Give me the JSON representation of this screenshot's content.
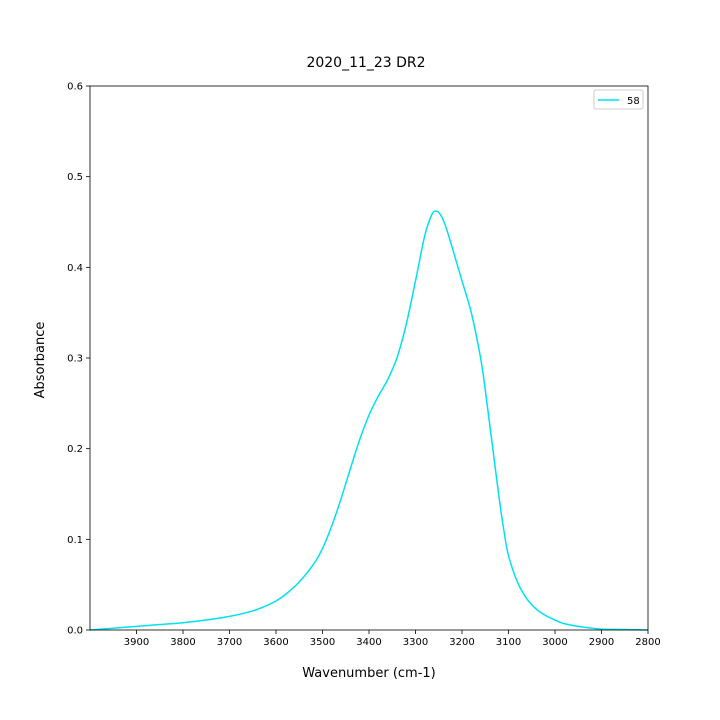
{
  "chart_data": {
    "type": "line",
    "title": "2020_11_23 DR2",
    "xlabel": "Wavenumber (cm-1)",
    "ylabel": "Absorbance",
    "xlim": [
      4000,
      2800
    ],
    "x_inverted": true,
    "ylim": [
      0,
      0.6
    ],
    "xticks": [
      3900,
      3800,
      3700,
      3600,
      3500,
      3400,
      3300,
      3200,
      3100,
      3000,
      2900,
      2800
    ],
    "xtick_labels": [
      "3900",
      "3800",
      "3700",
      "3600",
      "3500",
      "3400",
      "3300",
      "3200",
      "3100",
      "3000",
      "2900",
      "2800"
    ],
    "yticks": [
      0,
      0.1,
      0.2,
      0.3,
      0.4,
      0.5,
      0.6
    ],
    "ytick_labels": [
      "0.0",
      "0.1",
      "0.2",
      "0.3",
      "0.4",
      "0.5",
      "0.6"
    ],
    "grid": false,
    "legend_position": "top-right",
    "series": [
      {
        "name": "58",
        "color": "#00e1f0",
        "x": [
          4000,
          3950,
          3900,
          3850,
          3800,
          3750,
          3700,
          3650,
          3620,
          3600,
          3580,
          3550,
          3520,
          3500,
          3480,
          3460,
          3440,
          3420,
          3400,
          3380,
          3360,
          3340,
          3320,
          3300,
          3280,
          3265,
          3255,
          3245,
          3235,
          3220,
          3200,
          3180,
          3160,
          3150,
          3140,
          3130,
          3120,
          3110,
          3100,
          3080,
          3060,
          3040,
          3020,
          3000,
          2980,
          2950,
          2920,
          2900,
          2850,
          2800
        ],
        "y": [
          0.0,
          0.002,
          0.004,
          0.006,
          0.008,
          0.011,
          0.015,
          0.021,
          0.027,
          0.032,
          0.039,
          0.053,
          0.072,
          0.09,
          0.115,
          0.145,
          0.178,
          0.21,
          0.237,
          0.258,
          0.276,
          0.3,
          0.337,
          0.385,
          0.435,
          0.458,
          0.462,
          0.457,
          0.445,
          0.42,
          0.385,
          0.35,
          0.3,
          0.265,
          0.225,
          0.185,
          0.145,
          0.11,
          0.082,
          0.052,
          0.034,
          0.023,
          0.016,
          0.011,
          0.007,
          0.004,
          0.002,
          0.001,
          0.0005,
          0.0
        ]
      }
    ]
  }
}
